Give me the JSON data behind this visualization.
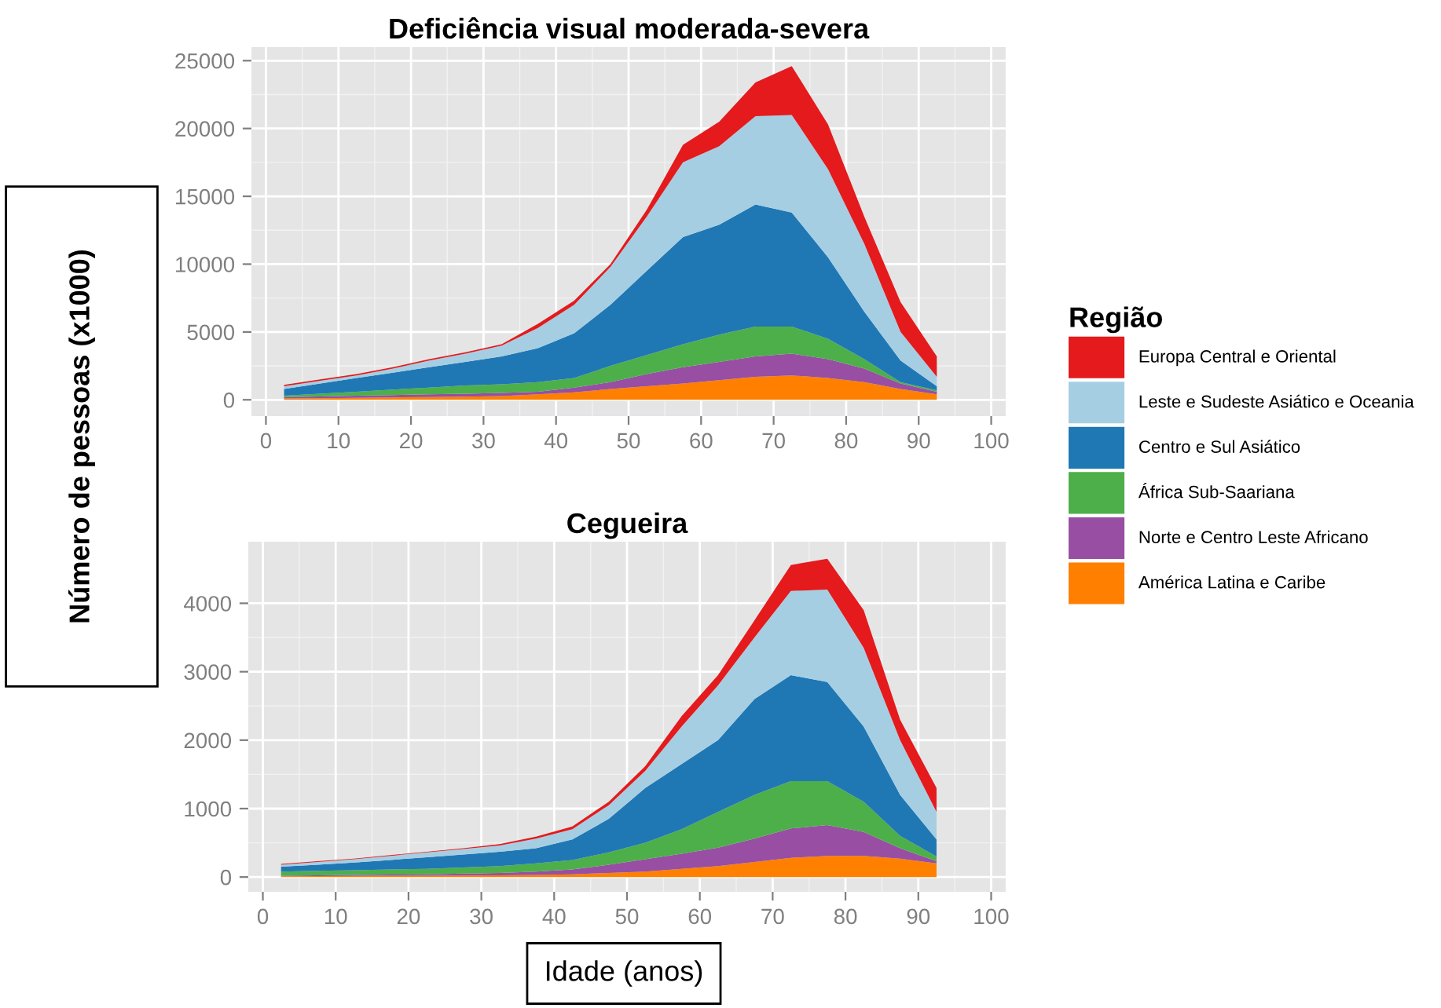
{
  "chart_data": [
    {
      "type": "area",
      "stacked": true,
      "title": "Deficiência visual moderada-severa",
      "ylabel": "Número de pessoas (x1000)",
      "legend_title": "Região",
      "legend": "right",
      "grid": true,
      "x": [
        2.5,
        7.5,
        12.5,
        17.5,
        22.5,
        27.5,
        32.5,
        37.5,
        42.5,
        47.5,
        52.5,
        57.5,
        62.5,
        67.5,
        72.5,
        77.5,
        82.5,
        87.5,
        92.5
      ],
      "xlim": [
        -2,
        102
      ],
      "xticks": [
        0,
        10,
        20,
        30,
        40,
        50,
        60,
        70,
        80,
        90,
        100
      ],
      "ylim": [
        -1200,
        26000
      ],
      "yticks": [
        0,
        5000,
        10000,
        15000,
        20000,
        25000
      ],
      "series": [
        {
          "name": "América Latina e Caribe",
          "color": "#ff7f00",
          "values": [
            100,
            120,
            150,
            180,
            200,
            230,
            270,
            400,
            550,
            800,
            1000,
            1200,
            1450,
            1700,
            1800,
            1600,
            1300,
            800,
            400
          ]
        },
        {
          "name": "Norte e Centro Leste Africano",
          "color": "#984ea3",
          "values": [
            100,
            130,
            150,
            170,
            200,
            220,
            230,
            200,
            350,
            500,
            900,
            1200,
            1350,
            1500,
            1600,
            1400,
            1000,
            400,
            200
          ]
        },
        {
          "name": "África Sub-Saariana",
          "color": "#4daf4a",
          "values": [
            100,
            200,
            300,
            400,
            500,
            600,
            650,
            700,
            700,
            1200,
            1400,
            1700,
            2000,
            2200,
            2000,
            1500,
            700,
            100,
            100
          ]
        },
        {
          "name": "Centro e Sul Asiático",
          "color": "#1f78b4",
          "values": [
            500,
            750,
            1000,
            1250,
            1500,
            1750,
            2050,
            2500,
            3300,
            4500,
            6200,
            7900,
            8100,
            9000,
            8400,
            6000,
            3500,
            1600,
            300
          ]
        },
        {
          "name": "Leste e Sudeste Asiático e Oceania",
          "color": "#a6cee3",
          "values": [
            200,
            200,
            200,
            300,
            500,
            600,
            800,
            1500,
            2100,
            2800,
            4000,
            5500,
            5800,
            6500,
            7200,
            6500,
            5000,
            2100,
            700
          ]
        },
        {
          "name": "Europa Central e Oriental",
          "color": "#e41a1c",
          "values": [
            100,
            100,
            100,
            100,
            100,
            100,
            100,
            300,
            300,
            200,
            500,
            1300,
            1800,
            2500,
            3600,
            3300,
            2000,
            2200,
            1500
          ]
        }
      ]
    },
    {
      "type": "area",
      "stacked": true,
      "title": "Cegueira",
      "xlabel": "Idade (anos)",
      "grid": true,
      "x": [
        2.5,
        7.5,
        12.5,
        17.5,
        22.5,
        27.5,
        32.5,
        37.5,
        42.5,
        47.5,
        52.5,
        57.5,
        62.5,
        67.5,
        72.5,
        77.5,
        82.5,
        87.5,
        92.5
      ],
      "xlim": [
        -2,
        102
      ],
      "xticks": [
        0,
        10,
        20,
        30,
        40,
        50,
        60,
        70,
        80,
        90,
        100
      ],
      "ylim": [
        -216,
        4900
      ],
      "yticks": [
        0,
        1000,
        2000,
        3000,
        4000
      ],
      "series": [
        {
          "color": "#ff7f00",
          "values": [
            10,
            12,
            15,
            18,
            20,
            22,
            25,
            30,
            40,
            60,
            80,
            120,
            160,
            220,
            280,
            310,
            310,
            270,
            200
          ]
        },
        {
          "color": "#984ea3",
          "values": [
            10,
            13,
            15,
            17,
            20,
            28,
            35,
            50,
            70,
            120,
            180,
            220,
            270,
            340,
            430,
            450,
            350,
            150,
            30
          ]
        },
        {
          "color": "#4daf4a",
          "values": [
            60,
            65,
            70,
            75,
            80,
            90,
            100,
            120,
            140,
            180,
            240,
            360,
            520,
            640,
            690,
            640,
            440,
            180,
            70
          ]
        },
        {
          "color": "#1f78b4",
          "values": [
            70,
            90,
            110,
            140,
            170,
            190,
            210,
            220,
            300,
            490,
            800,
            950,
            1050,
            1400,
            1550,
            1450,
            1100,
            600,
            250
          ]
        },
        {
          "color": "#a6cee3",
          "values": [
            30,
            40,
            50,
            60,
            70,
            80,
            90,
            140,
            150,
            200,
            250,
            550,
            800,
            900,
            1230,
            1350,
            1150,
            800,
            400
          ]
        },
        {
          "color": "#e41a1c",
          "values": [
            10,
            10,
            10,
            10,
            10,
            10,
            20,
            30,
            40,
            50,
            70,
            150,
            150,
            250,
            380,
            450,
            550,
            300,
            350
          ]
        }
      ]
    }
  ]
}
